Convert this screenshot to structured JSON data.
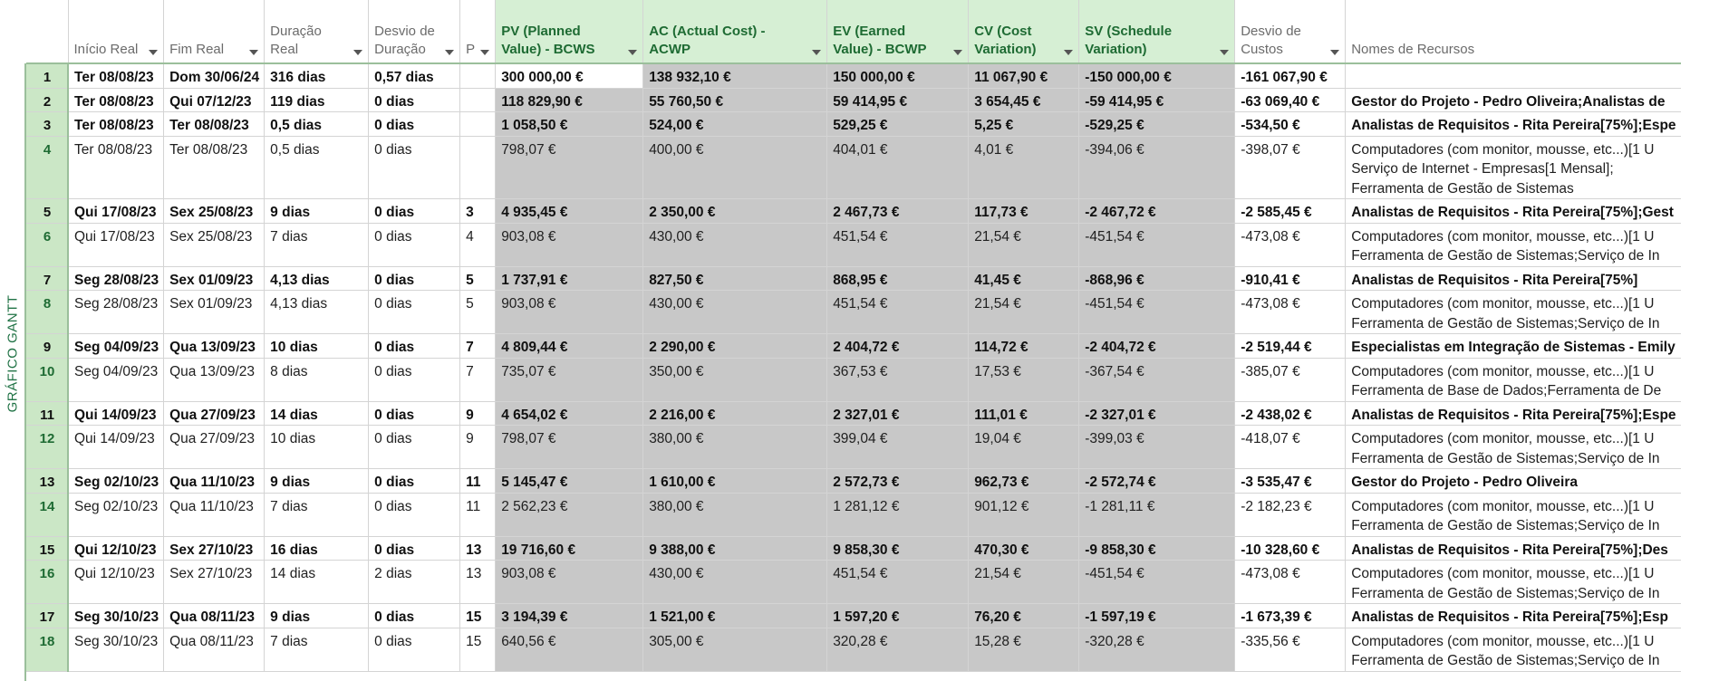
{
  "side_label": "GRÁFICO GANTT",
  "columns": [
    {
      "label": "Início Real"
    },
    {
      "label": "Fim Real"
    },
    {
      "label": "Duração Real"
    },
    {
      "label": "Desvio de Duração"
    },
    {
      "label": "P"
    },
    {
      "label": "PV (Planned Value) - BCWS"
    },
    {
      "label": "AC (Actual Cost) - ACWP"
    },
    {
      "label": "EV (Earned Value) - BCWP"
    },
    {
      "label": "CV (Cost Variation)"
    },
    {
      "label": "SV (Schedule Variation)"
    },
    {
      "label": "Desvio de Custos"
    },
    {
      "label": "Nomes de Recursos"
    }
  ],
  "rows": [
    {
      "n": "1",
      "bold": true,
      "start": "Ter 08/08/23",
      "end": "Dom 30/06/24",
      "dur": "316 dias",
      "ddev": "0,57 dias",
      "p": "",
      "pv": "300 000,00 €",
      "ac": "138 932,10 €",
      "ev": "150 000,00 €",
      "cv": "11 067,90 €",
      "sv": "-150 000,00 €",
      "cdev": "-161 067,90 €",
      "res": ""
    },
    {
      "n": "2",
      "bold": true,
      "start": "Ter 08/08/23",
      "end": "Qui 07/12/23",
      "dur": "119 dias",
      "ddev": "0 dias",
      "p": "",
      "pv": "118 829,90 €",
      "ac": "55 760,50 €",
      "ev": "59 414,95 €",
      "cv": "3 654,45 €",
      "sv": "-59 414,95 €",
      "cdev": "-63 069,40 €",
      "res": "Gestor do Projeto - Pedro Oliveira;Analistas de"
    },
    {
      "n": "3",
      "bold": true,
      "start": "Ter 08/08/23",
      "end": "Ter 08/08/23",
      "dur": "0,5 dias",
      "ddev": "0 dias",
      "p": "",
      "pv": "1 058,50 €",
      "ac": "524,00 €",
      "ev": "529,25 €",
      "cv": "5,25 €",
      "sv": "-529,25 €",
      "cdev": "-534,50 €",
      "res": "Analistas de Requisitos - Rita Pereira[75%];Espe"
    },
    {
      "n": "4",
      "bold": false,
      "start": "Ter 08/08/23",
      "end": "Ter 08/08/23",
      "dur": "0,5 dias",
      "ddev": "0 dias",
      "p": "",
      "pv": "798,07 €",
      "ac": "400,00 €",
      "ev": "404,01 €",
      "cv": "4,01 €",
      "sv": "-394,06 €",
      "cdev": "-398,07 €",
      "res": "Computadores (com monitor, mousse, etc...)[1 U",
      "res2": "Serviço de Internet - Empresas[1 Mensal];",
      "res3": "Ferramenta de Gestão de Sistemas"
    },
    {
      "n": "5",
      "bold": true,
      "start": "Qui 17/08/23",
      "end": "Sex 25/08/23",
      "dur": "9 dias",
      "ddev": "0 dias",
      "p": "3",
      "pv": "4 935,45 €",
      "ac": "2 350,00 €",
      "ev": "2 467,73 €",
      "cv": "117,73 €",
      "sv": "-2 467,72 €",
      "cdev": "-2 585,45 €",
      "res": "Analistas de Requisitos - Rita Pereira[75%];Gest"
    },
    {
      "n": "6",
      "bold": false,
      "start": "Qui 17/08/23",
      "end": "Sex 25/08/23",
      "dur": "7 dias",
      "ddev": "0 dias",
      "p": "4",
      "pv": "903,08 €",
      "ac": "430,00 €",
      "ev": "451,54 €",
      "cv": "21,54 €",
      "sv": "-451,54 €",
      "cdev": "-473,08 €",
      "res": "Computadores (com monitor, mousse, etc...)[1 U",
      "res2": "Ferramenta de Gestão de Sistemas;Serviço de In"
    },
    {
      "n": "7",
      "bold": true,
      "start": "Seg 28/08/23",
      "end": "Sex 01/09/23",
      "dur": "4,13 dias",
      "ddev": "0 dias",
      "p": "5",
      "pv": "1 737,91 €",
      "ac": "827,50 €",
      "ev": "868,95 €",
      "cv": "41,45 €",
      "sv": "-868,96 €",
      "cdev": "-910,41 €",
      "res": "Analistas de Requisitos - Rita Pereira[75%]"
    },
    {
      "n": "8",
      "bold": false,
      "start": "Seg 28/08/23",
      "end": "Sex 01/09/23",
      "dur": "4,13 dias",
      "ddev": "0 dias",
      "p": "5",
      "pv": "903,08 €",
      "ac": "430,00 €",
      "ev": "451,54 €",
      "cv": "21,54 €",
      "sv": "-451,54 €",
      "cdev": "-473,08 €",
      "res": "Computadores (com monitor, mousse, etc...)[1 U",
      "res2": "Ferramenta de Gestão de Sistemas;Serviço de In"
    },
    {
      "n": "9",
      "bold": true,
      "start": "Seg 04/09/23",
      "end": "Qua 13/09/23",
      "dur": "10 dias",
      "ddev": "0 dias",
      "p": "7",
      "pv": "4 809,44 €",
      "ac": "2 290,00 €",
      "ev": "2 404,72 €",
      "cv": "114,72 €",
      "sv": "-2 404,72 €",
      "cdev": "-2 519,44 €",
      "res": "Especialistas em Integração de Sistemas - Emily"
    },
    {
      "n": "10",
      "bold": false,
      "start": "Seg 04/09/23",
      "end": "Qua 13/09/23",
      "dur": "8 dias",
      "ddev": "0 dias",
      "p": "7",
      "pv": "735,07 €",
      "ac": "350,00 €",
      "ev": "367,53 €",
      "cv": "17,53 €",
      "sv": "-367,54 €",
      "cdev": "-385,07 €",
      "res": "Computadores (com monitor, mousse, etc...)[1 U",
      "res2": "Ferramenta de Base de Dados;Ferramenta de De"
    },
    {
      "n": "11",
      "bold": true,
      "start": "Qui 14/09/23",
      "end": "Qua 27/09/23",
      "dur": "14 dias",
      "ddev": "0 dias",
      "p": "9",
      "pv": "4 654,02 €",
      "ac": "2 216,00 €",
      "ev": "2 327,01 €",
      "cv": "111,01 €",
      "sv": "-2 327,01 €",
      "cdev": "-2 438,02 €",
      "res": "Analistas de Requisitos - Rita Pereira[75%];Espe"
    },
    {
      "n": "12",
      "bold": false,
      "start": "Qui 14/09/23",
      "end": "Qua 27/09/23",
      "dur": "10 dias",
      "ddev": "0 dias",
      "p": "9",
      "pv": "798,07 €",
      "ac": "380,00 €",
      "ev": "399,04 €",
      "cv": "19,04 €",
      "sv": "-399,03 €",
      "cdev": "-418,07 €",
      "res": "Computadores (com monitor, mousse, etc...)[1 U",
      "res2": "Ferramenta de Gestão de Sistemas;Serviço de In"
    },
    {
      "n": "13",
      "bold": true,
      "start": "Seg 02/10/23",
      "end": "Qua 11/10/23",
      "dur": "9 dias",
      "ddev": "0 dias",
      "p": "11",
      "pv": "5 145,47 €",
      "ac": "1 610,00 €",
      "ev": "2 572,73 €",
      "cv": "962,73 €",
      "sv": "-2 572,74 €",
      "cdev": "-3 535,47 €",
      "res": "Gestor do Projeto - Pedro Oliveira"
    },
    {
      "n": "14",
      "bold": false,
      "start": "Seg 02/10/23",
      "end": "Qua 11/10/23",
      "dur": "7 dias",
      "ddev": "0 dias",
      "p": "11",
      "pv": "2 562,23 €",
      "ac": "380,00 €",
      "ev": "1 281,12 €",
      "cv": "901,12 €",
      "sv": "-1 281,11 €",
      "cdev": "-2 182,23 €",
      "res": "Computadores (com monitor, mousse, etc...)[1 U",
      "res2": "Ferramenta de Gestão de Sistemas;Serviço de In"
    },
    {
      "n": "15",
      "bold": true,
      "start": "Qui 12/10/23",
      "end": "Sex 27/10/23",
      "dur": "16 dias",
      "ddev": "0 dias",
      "p": "13",
      "pv": "19 716,60 €",
      "ac": "9 388,00 €",
      "ev": "9 858,30 €",
      "cv": "470,30 €",
      "sv": "-9 858,30 €",
      "cdev": "-10 328,60 €",
      "res": "Analistas de Requisitos - Rita Pereira[75%];Des"
    },
    {
      "n": "16",
      "bold": false,
      "start": "Qui 12/10/23",
      "end": "Sex 27/10/23",
      "dur": "14 dias",
      "ddev": "2 dias",
      "p": "13",
      "pv": "903,08 €",
      "ac": "430,00 €",
      "ev": "451,54 €",
      "cv": "21,54 €",
      "sv": "-451,54 €",
      "cdev": "-473,08 €",
      "res": "Computadores (com monitor, mousse, etc...)[1 U",
      "res2": "Ferramenta de Gestão de Sistemas;Serviço de In"
    },
    {
      "n": "17",
      "bold": true,
      "start": "Seg 30/10/23",
      "end": "Qua 08/11/23",
      "dur": "9 dias",
      "ddev": "0 dias",
      "p": "15",
      "pv": "3 194,39 €",
      "ac": "1 521,00 €",
      "ev": "1 597,20 €",
      "cv": "76,20 €",
      "sv": "-1 597,19 €",
      "cdev": "-1 673,39 €",
      "res": "Analistas de Requisitos - Rita Pereira[75%];Esp"
    },
    {
      "n": "18",
      "bold": false,
      "start": "Seg 30/10/23",
      "end": "Qua 08/11/23",
      "dur": "7 dias",
      "ddev": "0 dias",
      "p": "15",
      "pv": "640,56 €",
      "ac": "305,00 €",
      "ev": "320,28 €",
      "cv": "15,28 €",
      "sv": "-320,28 €",
      "cdev": "-335,56 €",
      "res": "Computadores (com monitor, mousse, etc...)[1 U",
      "res2": "Ferramenta de Gestão de Sistemas;Serviço de In"
    }
  ]
}
